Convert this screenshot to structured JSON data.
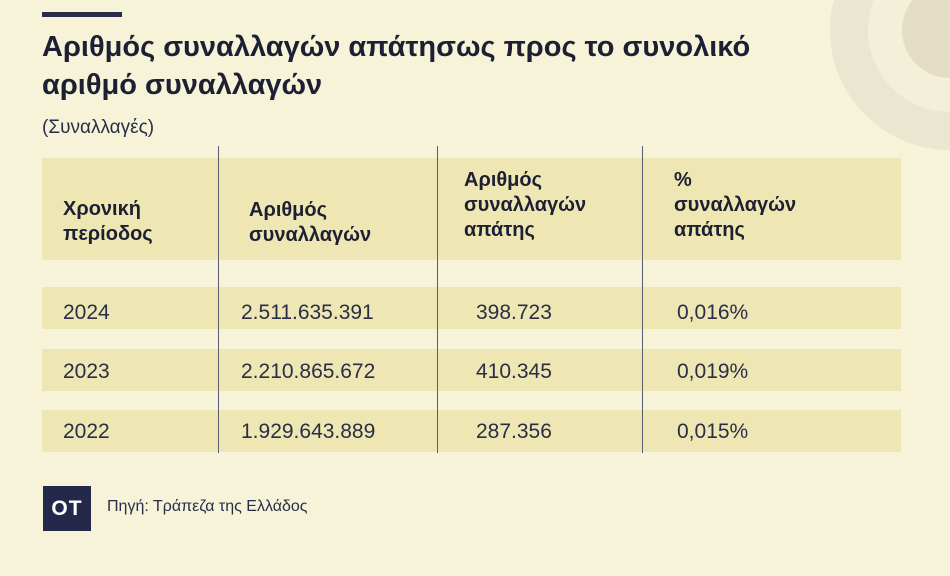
{
  "title": "Αριθμός συναλλαγών απάτησως προς το συνολικό\nαριθμό συναλλαγών",
  "unit": "(Συναλλαγές)",
  "table": {
    "headers": [
      "Χρονική\nπερίοδος",
      "Αριθμός\nσυναλλαγών",
      "Αριθμός\nσυναλλαγών\nαπάτης",
      "%\nσυναλλαγών\nαπάτης"
    ],
    "rows": [
      [
        "2024",
        "2.511.635.391",
        "398.723",
        "0,016%"
      ],
      [
        "2023",
        "2.210.865.672",
        "410.345",
        "0,019%"
      ],
      [
        "2022",
        "1.929.643.889",
        "287.356",
        "0,015%"
      ]
    ]
  },
  "footer": {
    "logo": "OT",
    "source": "Πηγή: Τράπεζα της Ελλάδος"
  }
}
